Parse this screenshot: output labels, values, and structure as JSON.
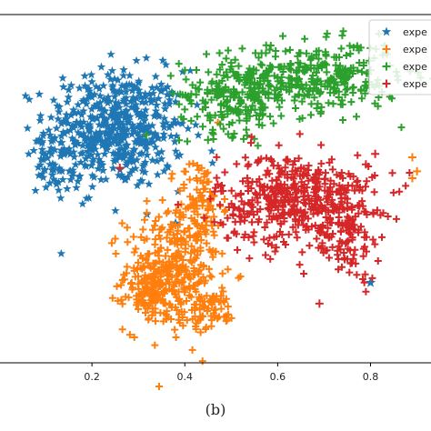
{
  "figure": {
    "caption": "(b)"
  },
  "chart_data": {
    "type": "scatter",
    "xlim": [
      0.0,
      0.94
    ],
    "ylim": [
      0.0,
      1.0
    ],
    "x_ticks": [
      0.2,
      0.4,
      0.6,
      0.8
    ],
    "x_tick_labels": [
      "0.2",
      "0.4",
      "0.6",
      "0.8"
    ],
    "grid": false,
    "legend_position": "top-right",
    "series": [
      {
        "name": "expe",
        "color": "#1f77b4",
        "marker": "star",
        "clusters": [
          {
            "cx": 0.25,
            "cy": 0.67,
            "sx": 0.075,
            "sy": 0.085,
            "n": 520
          },
          {
            "cx": 0.12,
            "cy": 0.57,
            "sx": 0.02,
            "sy": 0.04,
            "n": 50
          }
        ],
        "outliers": [
          [
            0.8,
            0.23
          ],
          [
            0.38,
            0.4
          ]
        ]
      },
      {
        "name": "expe",
        "color": "#ff7f0e",
        "marker": "plus",
        "clusters": [
          {
            "cx": 0.37,
            "cy": 0.26,
            "sx": 0.05,
            "sy": 0.085,
            "n": 320
          },
          {
            "cx": 0.43,
            "cy": 0.45,
            "sx": 0.025,
            "sy": 0.07,
            "n": 110
          },
          {
            "cx": 0.32,
            "cy": 0.2,
            "sx": 0.025,
            "sy": 0.035,
            "n": 70
          },
          {
            "cx": 0.46,
            "cy": 0.15,
            "sx": 0.025,
            "sy": 0.025,
            "n": 60
          }
        ],
        "outliers": [
          [
            0.89,
            0.59
          ],
          [
            0.9,
            0.55
          ],
          [
            0.89,
            0.53
          ]
        ]
      },
      {
        "name": "expe",
        "color": "#2ca02c",
        "marker": "plus",
        "clusters": [
          {
            "cx": 0.51,
            "cy": 0.77,
            "sx": 0.06,
            "sy": 0.055,
            "n": 230
          },
          {
            "cx": 0.69,
            "cy": 0.82,
            "sx": 0.085,
            "sy": 0.05,
            "n": 300
          }
        ],
        "outliers": [
          [
            0.8,
            0.84
          ],
          [
            0.45,
            0.64
          ]
        ]
      },
      {
        "name": "expe",
        "color": "#d62728",
        "marker": "plus",
        "clusters": [
          {
            "cx": 0.64,
            "cy": 0.47,
            "sx": 0.085,
            "sy": 0.065,
            "n": 480
          },
          {
            "cx": 0.75,
            "cy": 0.36,
            "sx": 0.035,
            "sy": 0.06,
            "n": 90
          }
        ],
        "outliers": [
          [
            0.69,
            0.17
          ],
          [
            0.81,
            0.6
          ],
          [
            0.79,
            0.57
          ],
          [
            0.26,
            0.56
          ]
        ]
      }
    ]
  }
}
